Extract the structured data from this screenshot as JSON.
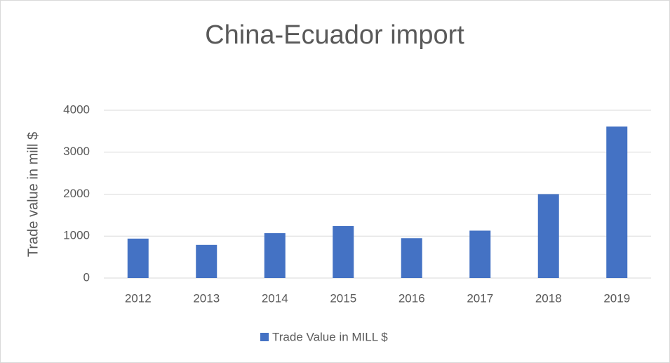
{
  "chart_data": {
    "type": "bar",
    "title": "China-Ecuador import",
    "y_label": "Trade value in mill $",
    "categories": [
      "2012",
      "2013",
      "2014",
      "2015",
      "2016",
      "2017",
      "2018",
      "2019"
    ],
    "series": [
      {
        "name": "Trade Value in MILL $",
        "color": "#4472c4",
        "values": [
          940,
          790,
          1070,
          1240,
          950,
          1130,
          2000,
          3610
        ]
      }
    ],
    "ylim": [
      0,
      4000
    ],
    "yticks": [
      0,
      1000,
      2000,
      3000,
      4000
    ],
    "grid": true,
    "legend": "bottom"
  }
}
